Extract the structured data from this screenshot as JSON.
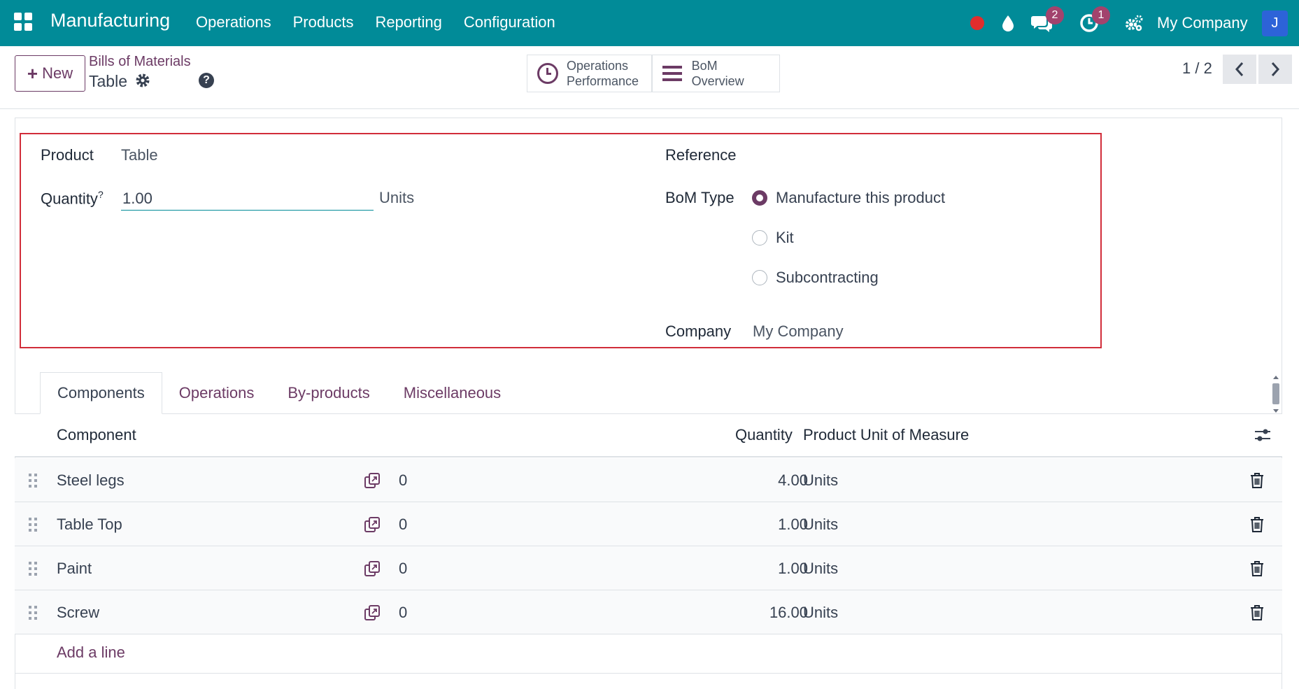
{
  "navbar": {
    "app_title": "Manufacturing",
    "menu": [
      "Operations",
      "Products",
      "Reporting",
      "Configuration"
    ],
    "messages_count": "2",
    "activities_count": "1",
    "company": "My Company",
    "user_initial": "J"
  },
  "control_panel": {
    "new_label": "New",
    "breadcrumb": "Bills of Materials",
    "record_title": "Table",
    "smart_buttons": {
      "operations_performance": [
        "Operations",
        "Performance"
      ],
      "bom_overview": "BoM Overview"
    },
    "pager": "1 / 2"
  },
  "form": {
    "product_label": "Product",
    "product_value": "Table",
    "quantity_label": "Quantity",
    "quantity_help": "?",
    "quantity_value": "1.00",
    "quantity_uom": "Units",
    "reference_label": "Reference",
    "reference_value": "",
    "bom_type_label": "BoM Type",
    "bom_type_options": [
      "Manufacture this product",
      "Kit",
      "Subcontracting"
    ],
    "bom_type_selected": "Manufacture this product",
    "company_label": "Company",
    "company_value": "My Company"
  },
  "tabs": {
    "items": [
      "Components",
      "Operations",
      "By-products",
      "Miscellaneous"
    ],
    "active": "Components"
  },
  "components": {
    "headers": {
      "component": "Component",
      "quantity": "Quantity",
      "uom": "Product Unit of Measure"
    },
    "rows": [
      {
        "component": "Steel legs",
        "count": "0",
        "quantity": "4.00",
        "uom": "Units"
      },
      {
        "component": "Table Top",
        "count": "0",
        "quantity": "1.00",
        "uom": "Units"
      },
      {
        "component": "Paint",
        "count": "0",
        "quantity": "1.00",
        "uom": "Units"
      },
      {
        "component": "Screw",
        "count": "0",
        "quantity": "16.00",
        "uom": "Units"
      }
    ],
    "add_line": "Add a line"
  },
  "colors": {
    "navbar": "#018b98",
    "accent": "#6c3b65",
    "highlight_border": "#d12d3a",
    "badge": "#a2436d"
  },
  "icons": [
    "apps-grid-icon",
    "record-dot-icon",
    "droplet-icon",
    "chat-icon",
    "clock-activity-icon",
    "settings-gears-icon",
    "gear-icon",
    "help-icon",
    "clock-icon",
    "bars-icon",
    "chevron-left-icon",
    "chevron-right-icon",
    "sliders-icon",
    "drag-handle-icon",
    "forecast-icon",
    "trash-icon"
  ]
}
